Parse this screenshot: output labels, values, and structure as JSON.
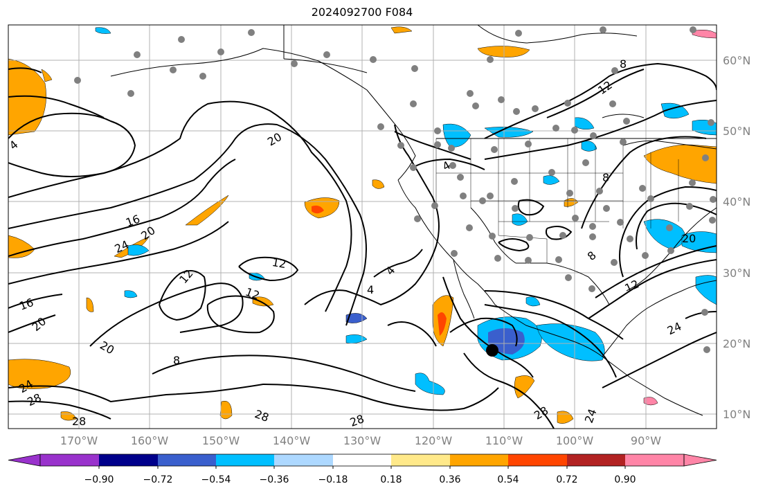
{
  "title": "2024092700 F084",
  "lat_labels": [
    "60°N",
    "50°N",
    "40°N",
    "30°N",
    "20°N",
    "10°N"
  ],
  "lon_labels": [
    "170°W",
    "160°W",
    "150°W",
    "140°W",
    "130°W",
    "120°W",
    "110°W",
    "100°W",
    "90°W"
  ],
  "contour_labels": [
    "4",
    "8",
    "12",
    "16",
    "20",
    "24",
    "28",
    "20",
    "12",
    "4",
    "4",
    "8",
    "12",
    "16",
    "20",
    "24",
    "28",
    "8",
    "20",
    "24",
    "12",
    "28",
    "28",
    "28",
    "24",
    "8",
    "20",
    "4",
    "12"
  ],
  "colorbar": {
    "labels": [
      "−0.90",
      "−0.72",
      "−0.54",
      "−0.36",
      "−0.18",
      "0.18",
      "0.36",
      "0.54",
      "0.72",
      "0.90"
    ],
    "colors": [
      "#9932cc",
      "#00008b",
      "#3a5fcd",
      "#00bfff",
      "#add8ff",
      "#ffffff",
      "#ffe98a",
      "#ffa500",
      "#ff4500",
      "#b22222",
      "#ff85a7"
    ]
  },
  "colors": {
    "background": "#ffffff",
    "contour": "#000000",
    "station": "#808080",
    "grid": "#b0b0b0"
  }
}
